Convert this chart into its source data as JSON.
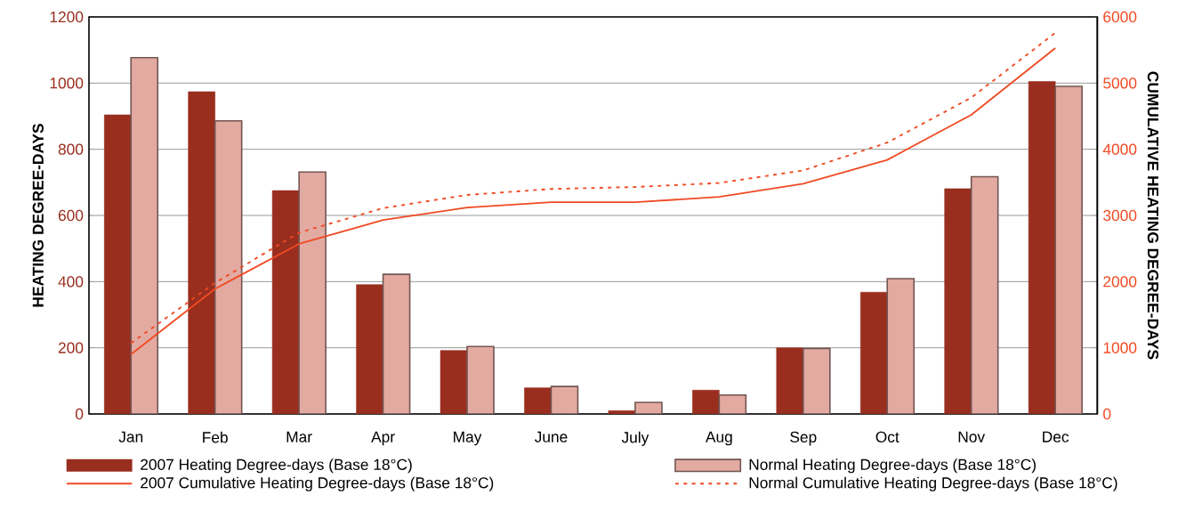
{
  "chart_data": {
    "type": "bar",
    "ylabel": "HEATING DEGREE-DAYS",
    "y2label": "CUMULATIVE HEATING DEGREE-DAYS",
    "categories": [
      "Jan",
      "Feb",
      "Mar",
      "Apr",
      "May",
      "June",
      "July",
      "Aug",
      "Sep",
      "Oct",
      "Nov",
      "Dec"
    ],
    "series": [
      {
        "name": "2007 Heating Degree-days (Base 18°C)",
        "color": "#992e1f",
        "values": [
          904,
          974,
          675,
          391,
          192,
          79,
          10,
          72,
          200,
          368,
          681,
          1005
        ]
      },
      {
        "name": "Normal Heating Degree-days (Base 18°C)",
        "color": "#e3aaa2",
        "values": [
          1077,
          886,
          731,
          422,
          204,
          83,
          35,
          57,
          198,
          409,
          717,
          990
        ]
      },
      {
        "name": "2007 Cumulative Heating Degree-days (Base 18°C)",
        "type": "line",
        "axis": "y2",
        "color": "#f04a23",
        "line_style": "solid",
        "values": [
          900,
          1890,
          2570,
          2930,
          3120,
          3200,
          3200,
          3280,
          3480,
          3840,
          4520,
          5530
        ]
      },
      {
        "name": "Normal Cumulative Heating Degree-days (Base 18°C)",
        "type": "line",
        "axis": "y2",
        "color": "#f04a23",
        "line_style": "dotted",
        "values": [
          1070,
          1980,
          2740,
          3110,
          3310,
          3400,
          3430,
          3490,
          3680,
          4100,
          4780,
          5760
        ]
      }
    ],
    "ylim": [
      0,
      1200
    ],
    "yticks": [
      0,
      200,
      400,
      600,
      800,
      1000,
      1200
    ],
    "y2lim": [
      0,
      6000
    ],
    "y2ticks": [
      0,
      1000,
      2000,
      3000,
      4000,
      5000,
      6000
    ],
    "grid": "y",
    "legend": "bottom",
    "marker": "none"
  }
}
